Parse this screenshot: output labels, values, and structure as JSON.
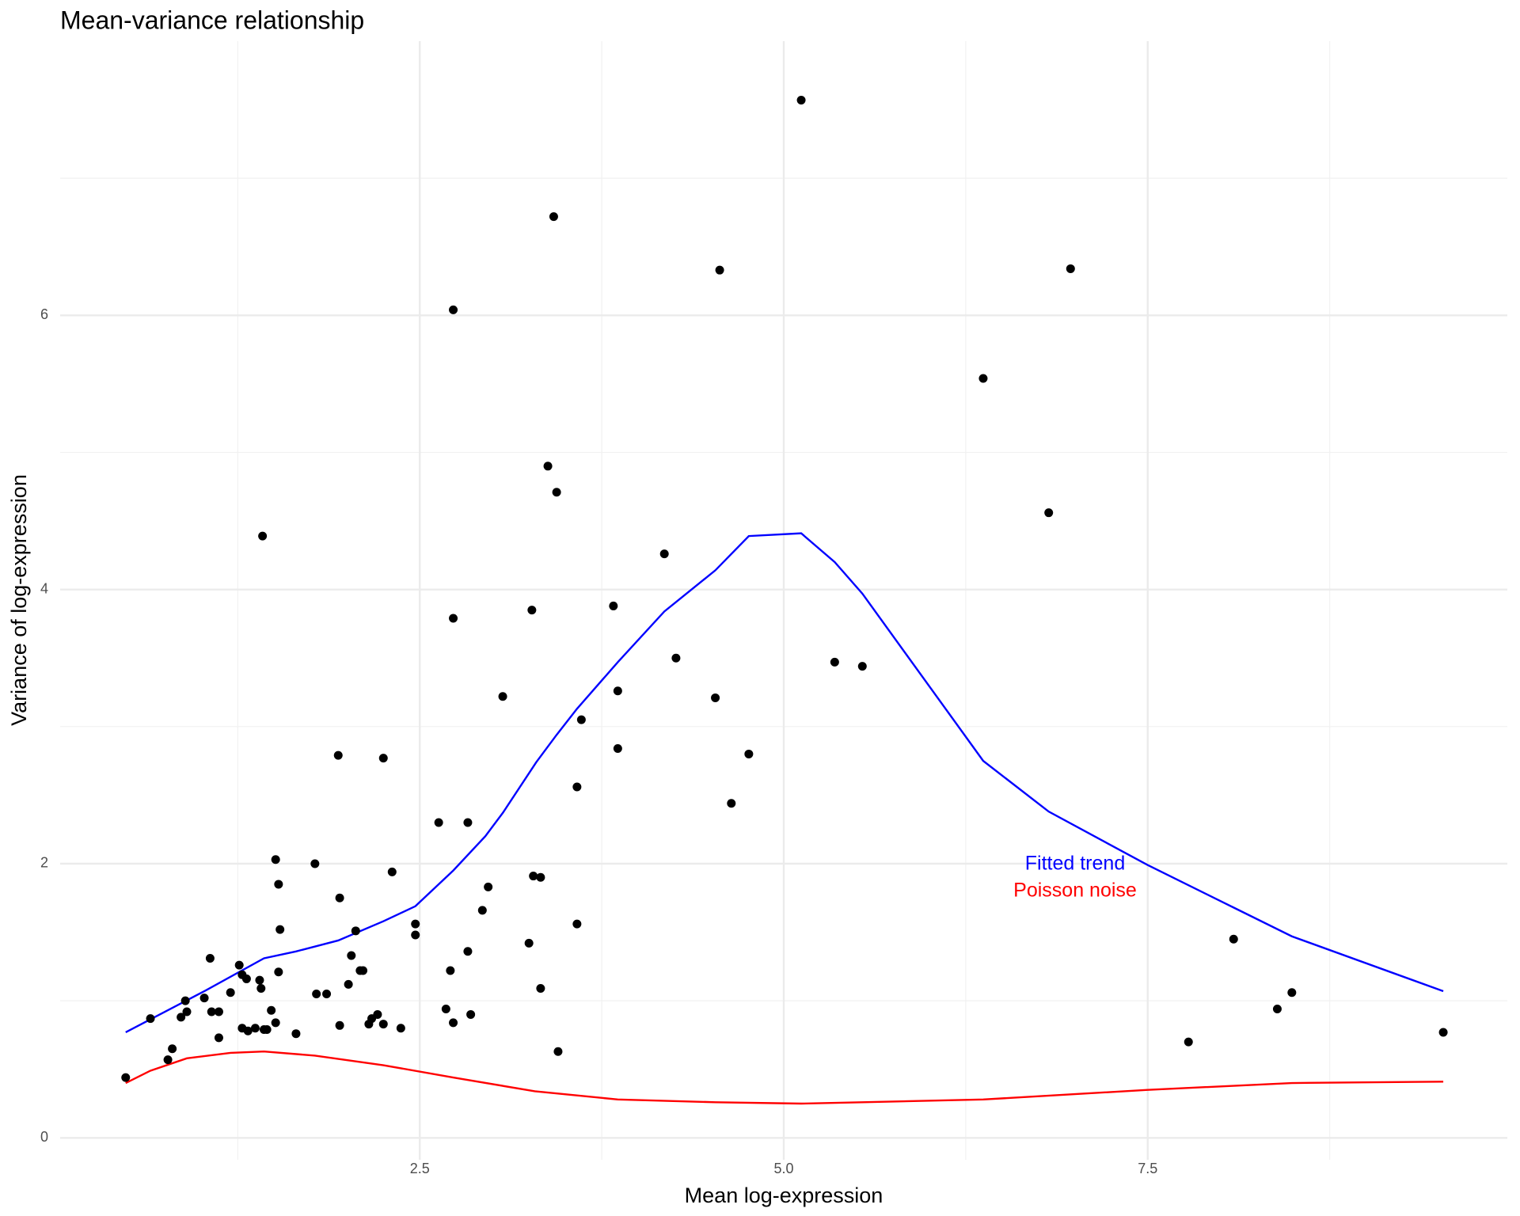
{
  "chart_data": {
    "type": "scatter",
    "title": "Mean-variance relationship",
    "x_label": "Mean log-expression",
    "y_label": "Variance of log-expression",
    "xlim": [
      0.03,
      9.97
    ],
    "ylim": [
      -0.16,
      8.0
    ],
    "xticks": [
      2.5,
      {
        "value": 5,
        "label": "5.0"
      },
      7.5
    ],
    "yticks": [
      0,
      2,
      4,
      6
    ],
    "minor_xticks": [
      1.25,
      3.75,
      6.25,
      8.75
    ],
    "minor_yticks": [
      1,
      3,
      5,
      7
    ],
    "grid": true,
    "point_color": "#000000",
    "x": [
      0.48,
      0.65,
      0.77,
      0.8,
      0.86,
      0.89,
      0.9,
      1.02,
      1.06,
      1.07,
      1.12,
      1.12,
      1.2,
      1.26,
      1.28,
      1.28,
      1.31,
      1.32,
      1.37,
      1.4,
      1.41,
      1.42,
      1.43,
      1.45,
      1.48,
      1.51,
      1.51,
      1.53,
      1.53,
      1.54,
      1.65,
      1.78,
      1.79,
      1.86,
      1.94,
      1.95,
      1.95,
      2.01,
      2.03,
      2.06,
      2.09,
      2.11,
      2.15,
      2.17,
      2.21,
      2.25,
      2.25,
      2.31,
      2.37,
      2.47,
      2.47,
      2.63,
      2.68,
      2.71,
      2.73,
      2.73,
      2.73,
      2.83,
      2.83,
      2.85,
      2.93,
      2.97,
      3.07,
      3.25,
      3.27,
      3.28,
      3.33,
      3.33,
      3.38,
      3.42,
      3.44,
      3.45,
      3.58,
      3.58,
      3.61,
      3.83,
      3.86,
      3.86,
      4.18,
      4.26,
      4.53,
      4.56,
      4.64,
      4.76,
      5.12,
      5.35,
      5.54,
      6.37,
      6.82,
      6.97,
      7.78,
      8.09,
      8.39,
      8.49,
      9.53
    ],
    "y": [
      0.44,
      0.87,
      0.57,
      0.65,
      0.88,
      1.0,
      0.92,
      1.02,
      1.31,
      0.92,
      0.92,
      0.73,
      1.06,
      1.26,
      0.8,
      1.19,
      1.16,
      0.78,
      0.8,
      1.15,
      1.09,
      4.39,
      0.79,
      0.79,
      0.93,
      0.84,
      2.03,
      1.85,
      1.21,
      1.52,
      0.76,
      2.0,
      1.05,
      1.05,
      2.79,
      1.75,
      0.82,
      1.12,
      1.33,
      1.51,
      1.22,
      1.22,
      0.83,
      0.87,
      0.9,
      0.83,
      2.77,
      1.94,
      0.8,
      1.56,
      1.48,
      2.3,
      0.94,
      1.22,
      6.04,
      3.79,
      0.84,
      1.36,
      2.3,
      0.9,
      1.66,
      1.83,
      3.22,
      1.42,
      3.85,
      1.91,
      1.09,
      1.9,
      4.9,
      6.72,
      4.71,
      0.63,
      2.56,
      1.56,
      3.05,
      3.88,
      3.26,
      2.84,
      4.26,
      3.5,
      3.21,
      6.33,
      2.44,
      2.8,
      7.57,
      3.47,
      3.44,
      5.54,
      4.56,
      6.34,
      0.7,
      1.45,
      0.94,
      1.06,
      0.77
    ],
    "lines": [
      {
        "name": "Fitted trend",
        "color": "#0000ff",
        "x": [
          0.48,
          1.02,
          1.43,
          1.65,
          1.94,
          2.25,
          2.47,
          2.73,
          2.95,
          3.07,
          3.3,
          3.44,
          3.58,
          3.86,
          4.18,
          4.53,
          4.76,
          5.12,
          5.35,
          5.54,
          6.37,
          6.82,
          7.5,
          8.09,
          8.49,
          9.53
        ],
        "y": [
          0.77,
          1.07,
          1.31,
          1.36,
          1.44,
          1.58,
          1.69,
          1.95,
          2.2,
          2.37,
          2.74,
          2.94,
          3.13,
          3.47,
          3.84,
          4.14,
          4.39,
          4.41,
          4.2,
          3.97,
          2.75,
          2.38,
          1.99,
          1.68,
          1.47,
          1.07
        ]
      },
      {
        "name": "Poisson noise",
        "color": "#ff0000",
        "x": [
          0.48,
          0.65,
          0.9,
          1.2,
          1.43,
          1.78,
          2.25,
          2.73,
          3.29,
          3.86,
          4.53,
          5.12,
          5.54,
          6.37,
          7.5,
          8.49,
          9.53
        ],
        "y": [
          0.4,
          0.49,
          0.58,
          0.62,
          0.63,
          0.6,
          0.53,
          0.44,
          0.34,
          0.28,
          0.26,
          0.25,
          0.26,
          0.28,
          0.35,
          0.4,
          0.41
        ]
      }
    ]
  }
}
